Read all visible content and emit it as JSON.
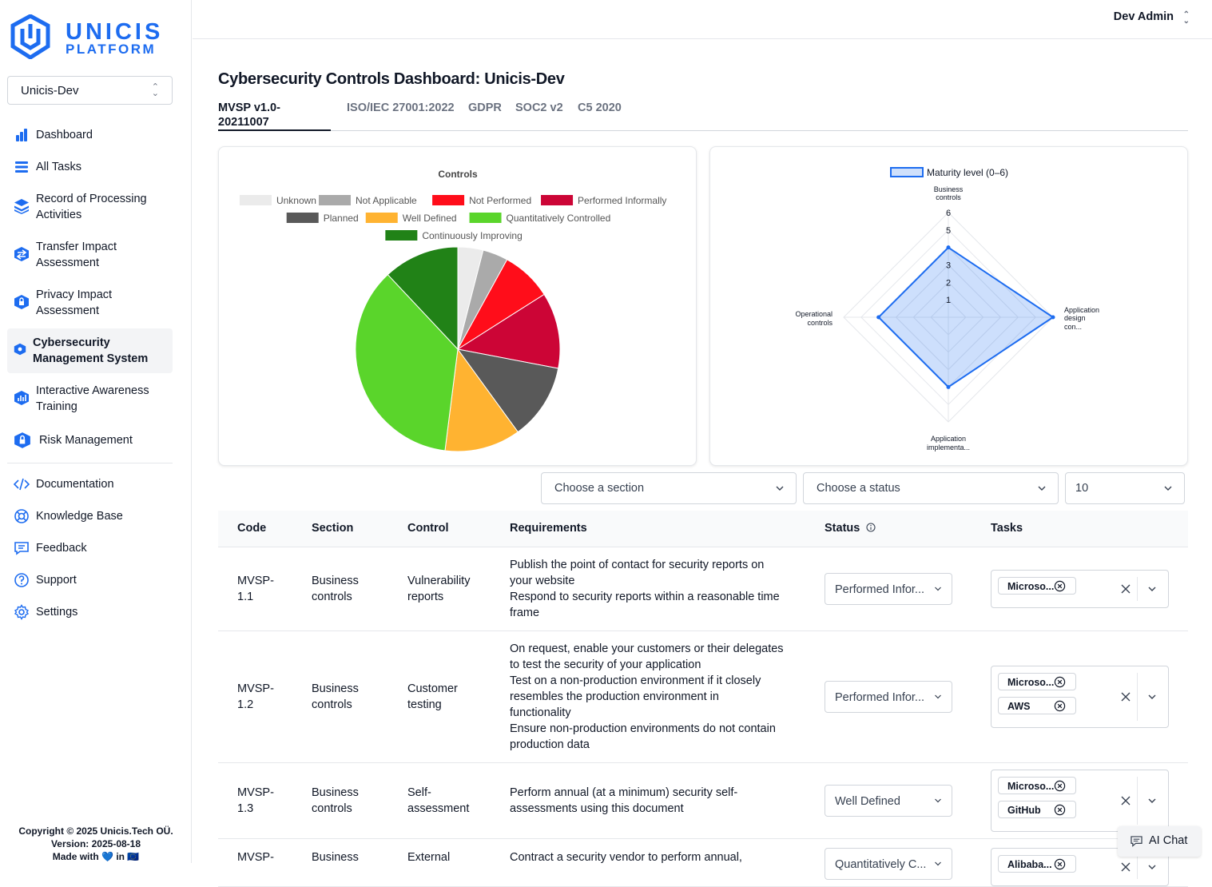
{
  "brand": {
    "line1": "UNICIS",
    "line2": "PLATFORM"
  },
  "org_selector": {
    "value": "Unicis-Dev"
  },
  "nav": {
    "items": [
      {
        "label": "Dashboard",
        "icon": "bar-chart-icon"
      },
      {
        "label": "All Tasks",
        "icon": "list-icon"
      },
      {
        "label": "Record of Processing Activities",
        "icon": "layers-icon"
      },
      {
        "label": "Transfer Impact Assessment",
        "icon": "transfer-icon"
      },
      {
        "label": "Privacy Impact Assessment",
        "icon": "shield-lock-icon"
      },
      {
        "label": "Cybersecurity Management System",
        "icon": "shield-icon"
      },
      {
        "label": "Interactive Awareness Training",
        "icon": "training-icon"
      },
      {
        "label": "Risk Management",
        "icon": "risk-icon"
      }
    ],
    "secondary": [
      {
        "label": "Documentation",
        "icon": "code-icon"
      },
      {
        "label": "Knowledge Base",
        "icon": "lifebuoy-icon"
      },
      {
        "label": "Feedback",
        "icon": "chat-icon"
      },
      {
        "label": "Support",
        "icon": "help-icon"
      },
      {
        "label": "Settings",
        "icon": "gear-icon"
      }
    ]
  },
  "footer": {
    "copyright": "Copyright © 2025 Unicis.Tech OÜ.",
    "version": "Version: 2025-08-18",
    "made_with": "Made with 💙 in 🇪🇺"
  },
  "header": {
    "user": "Dev Admin"
  },
  "page": {
    "title": "Cybersecurity Controls Dashboard: Unicis-Dev",
    "tabs": [
      "MVSP v1.0-20211007",
      "ISO/IEC 27001:2022",
      "GDPR",
      "SOC2 v2",
      "C5 2020"
    ]
  },
  "chart_data": [
    {
      "type": "pie",
      "title": "Controls",
      "categories": [
        "Unknown",
        "Not Applicable",
        "Not Performed",
        "Performed Informally",
        "Planned",
        "Well Defined",
        "Quantitatively Controlled",
        "Continuously Improving"
      ],
      "values": [
        1,
        1,
        2,
        3,
        3,
        3,
        9,
        3
      ],
      "colors": [
        "#ebebeb",
        "#aaaaaa",
        "#ff0d1a",
        "#cc0536",
        "#595959",
        "#ffb331",
        "#5ad52b",
        "#218217"
      ],
      "legend": "top"
    },
    {
      "type": "radar",
      "legend_label": "Maturity level (0–6)",
      "categories": [
        "Business controls",
        "Application design con...",
        "Application implementa...",
        "Operational controls"
      ],
      "values": [
        4,
        6,
        4,
        4
      ],
      "range": [
        0,
        6
      ],
      "ticks": [
        "1",
        "2",
        "3",
        "5",
        "6"
      ],
      "color": "#1d6cf0"
    }
  ],
  "filters": {
    "section_placeholder": "Choose a section",
    "status_placeholder": "Choose a status",
    "page_size": "10"
  },
  "table": {
    "headers": [
      "Code",
      "Section",
      "Control",
      "Requirements",
      "Status",
      "Tasks"
    ],
    "rows": [
      {
        "code": [
          "MVSP-",
          "1.1"
        ],
        "section": [
          "Business",
          "controls"
        ],
        "control": [
          "Vulnerability",
          "reports"
        ],
        "requirements": [
          "Publish the point of contact for security reports on",
          "your website",
          "Respond to security reports within a reasonable time",
          "frame"
        ],
        "status": "Performed Infor...",
        "tasks": [
          "Microso..."
        ]
      },
      {
        "code": [
          "MVSP-",
          "1.2"
        ],
        "section": [
          "Business",
          "controls"
        ],
        "control": [
          "Customer",
          "testing"
        ],
        "requirements": [
          "On request, enable your customers or their delegates",
          "to test the security of your application",
          "Test on a non-production environment if it closely",
          "resembles the production environment in",
          "functionality",
          "Ensure non-production environments do not contain",
          "production data"
        ],
        "status": "Performed Infor...",
        "tasks": [
          "Microso...",
          "AWS"
        ]
      },
      {
        "code": [
          "MVSP-",
          "1.3"
        ],
        "section": [
          "Business",
          "controls"
        ],
        "control": [
          "Self-",
          "assessment"
        ],
        "requirements": [
          "Perform annual (at a minimum) security self-",
          "assessments using this document"
        ],
        "status": "Well Defined",
        "tasks": [
          "Microso...",
          "GitHub"
        ]
      },
      {
        "code": [
          "MVSP-",
          ""
        ],
        "section": [
          "Business",
          ""
        ],
        "control": [
          "External",
          ""
        ],
        "requirements": [
          "Contract a security vendor to perform annual,",
          ""
        ],
        "status": "Quantitatively C...",
        "tasks": [
          "Alibaba..."
        ]
      }
    ]
  },
  "ai_chat": {
    "label": "AI Chat"
  }
}
